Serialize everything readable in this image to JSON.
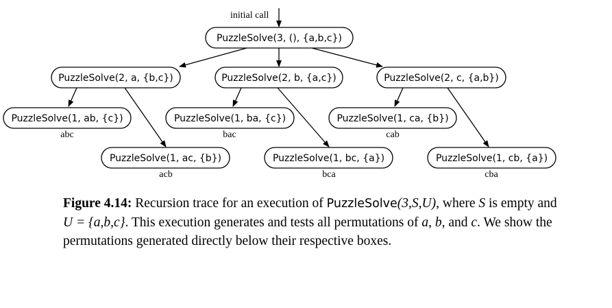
{
  "diagram": {
    "initial_label": "initial call",
    "root": {
      "label": "PuzzleSolve(3, (), {a,b,c})"
    },
    "level1": [
      {
        "label": "PuzzleSolve(2, a, {b,c})"
      },
      {
        "label": "PuzzleSolve(2, b, {a,c})"
      },
      {
        "label": "PuzzleSolve(2, c, {a,b})"
      }
    ],
    "level2": [
      {
        "label": "PuzzleSolve(1, ab, {c})",
        "perm": "abc"
      },
      {
        "label": "PuzzleSolve(1, ac, {b})",
        "perm": "acb"
      },
      {
        "label": "PuzzleSolve(1, ba, {c})",
        "perm": "bac"
      },
      {
        "label": "PuzzleSolve(1, bc, {a})",
        "perm": "bca"
      },
      {
        "label": "PuzzleSolve(1, ca, {b})",
        "perm": "cab"
      },
      {
        "label": "PuzzleSolve(1, cb, {a})",
        "perm": "cba"
      }
    ]
  },
  "caption": {
    "label": "Figure 4.14:",
    "t1": " Recursion trace for an execution of ",
    "fn": "PuzzleSolve",
    "args": "(3,S,U)",
    "t2": ", where ",
    "S": "S",
    "t3": " is empty and ",
    "U_eq": "U = {a,b,c}",
    "t4": ". This execution generates and tests all permutations of ",
    "a": "a",
    "t5": ", ",
    "b": "b",
    "t6": ", and ",
    "c": "c",
    "t7": ". We show the permutations generated directly below their respective boxes."
  }
}
